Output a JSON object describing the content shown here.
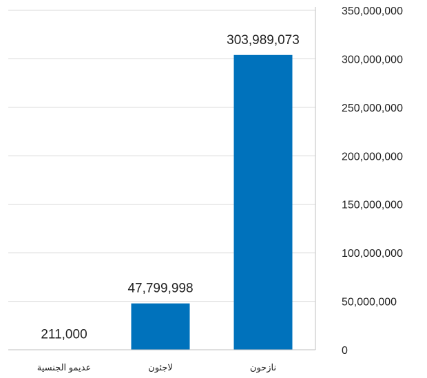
{
  "chart_data": {
    "type": "bar",
    "categories": [
      "عديمو الجنسية",
      "لاجئون",
      "نازحون"
    ],
    "values": [
      211000,
      47799998,
      303989073
    ],
    "data_labels": [
      "211,000",
      "47,799,998",
      "303,989,073"
    ],
    "ylim": [
      0,
      350000000
    ],
    "yticks": [
      0,
      50000000,
      100000000,
      150000000,
      200000000,
      250000000,
      300000000,
      350000000
    ],
    "ytick_labels": [
      "0",
      "50,000,000",
      "100,000,000",
      "150,000,000",
      "200,000,000",
      "250,000,000",
      "300,000,000",
      "350,000,000"
    ],
    "y_axis_side": "right",
    "grid": true,
    "bar_color": "#0072bc",
    "grid_color": "#d9d9d9",
    "axis_color": "#bfbfbf",
    "text_color": "#222222"
  }
}
